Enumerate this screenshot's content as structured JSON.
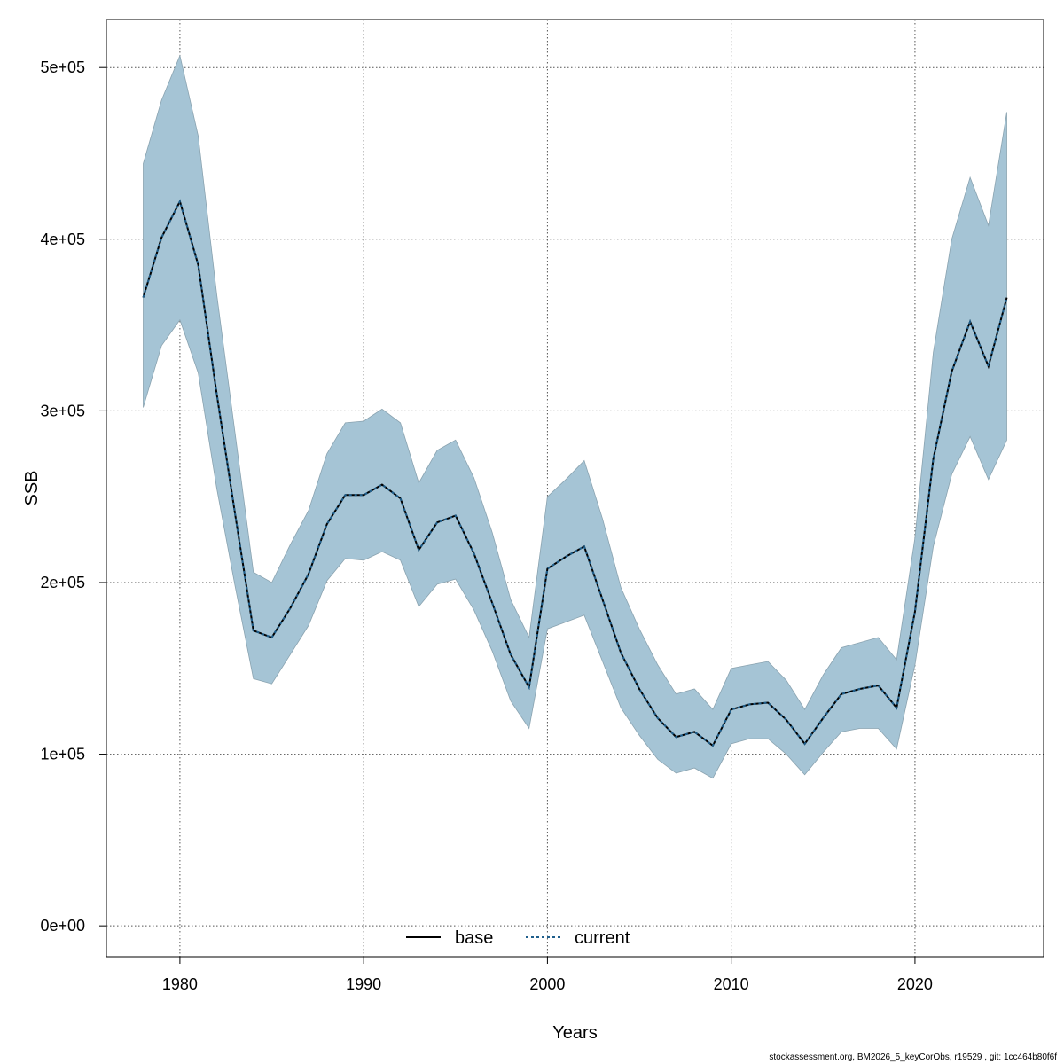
{
  "chart_data": {
    "type": "line",
    "xlabel": "Years",
    "ylabel": "SSB",
    "xlim": [
      1976,
      2027
    ],
    "ylim": [
      -18000,
      528000
    ],
    "x_ticks": [
      1980,
      1990,
      2000,
      2010,
      2020
    ],
    "x_tick_labels": [
      "1980",
      "1990",
      "2000",
      "2010",
      "2020"
    ],
    "y_ticks": [
      0,
      100000,
      200000,
      300000,
      400000,
      500000
    ],
    "y_tick_labels": [
      "0e+00",
      "1e+05",
      "2e+05",
      "3e+05",
      "4e+05",
      "5e+05"
    ],
    "grid": true,
    "legend_position": "bottom",
    "legend": [
      "base",
      "current"
    ],
    "colors": {
      "band": "#a5c4d5",
      "band_edge": "#8aa3b0",
      "base": "#000000",
      "current": "#1f5f8c",
      "grid": "#555555"
    },
    "years": [
      1978,
      1979,
      1980,
      1981,
      1982,
      1983,
      1984,
      1985,
      1986,
      1987,
      1988,
      1989,
      1990,
      1991,
      1992,
      1993,
      1994,
      1995,
      1996,
      1997,
      1998,
      1999,
      2000,
      2001,
      2002,
      2003,
      2004,
      2005,
      2006,
      2007,
      2008,
      2009,
      2010,
      2011,
      2012,
      2013,
      2014,
      2015,
      2016,
      2017,
      2018,
      2019,
      2020,
      2021,
      2022,
      2023,
      2024,
      2025
    ],
    "series": [
      {
        "name": "base",
        "line_style": "solid",
        "values": [
          366000,
          401000,
          422000,
          385000,
          310000,
          240000,
          172000,
          168000,
          185000,
          205000,
          234000,
          251000,
          251000,
          257000,
          249000,
          219000,
          235000,
          239000,
          217000,
          188000,
          158000,
          139000,
          208000,
          215000,
          221000,
          190000,
          159000,
          138000,
          121000,
          110000,
          113000,
          105000,
          126000,
          129000,
          130000,
          120000,
          106000,
          121000,
          135000,
          138000,
          140000,
          127000,
          183000,
          272000,
          323000,
          352000,
          326000,
          366000
        ]
      },
      {
        "name": "current",
        "line_style": "dashed",
        "values": [
          366000,
          401000,
          422000,
          385000,
          310000,
          240000,
          172000,
          168000,
          185000,
          205000,
          234000,
          251000,
          251000,
          257000,
          249000,
          219000,
          235000,
          239000,
          217000,
          188000,
          158000,
          139000,
          208000,
          215000,
          221000,
          190000,
          159000,
          138000,
          121000,
          110000,
          113000,
          105000,
          126000,
          129000,
          130000,
          120000,
          106000,
          121000,
          135000,
          138000,
          140000,
          127000,
          183000,
          272000,
          323000,
          352000,
          326000,
          366000
        ]
      }
    ],
    "ci_lower": [
      302000,
      338000,
      353000,
      322000,
      255000,
      198000,
      144000,
      141000,
      158000,
      175000,
      201000,
      214000,
      213000,
      218000,
      213000,
      186000,
      199000,
      202000,
      184000,
      160000,
      131000,
      115000,
      173000,
      177000,
      181000,
      154000,
      127000,
      111000,
      97000,
      89000,
      92000,
      86000,
      106000,
      109000,
      109000,
      100000,
      88000,
      101000,
      113000,
      115000,
      115000,
      103000,
      152000,
      221000,
      263000,
      285000,
      260000,
      283000
    ],
    "ci_upper": [
      444000,
      481000,
      507000,
      460000,
      368000,
      287000,
      206000,
      200000,
      222000,
      242000,
      275000,
      293000,
      294000,
      301000,
      293000,
      258000,
      277000,
      283000,
      261000,
      229000,
      190000,
      168000,
      250000,
      260000,
      271000,
      237000,
      197000,
      173000,
      152000,
      135000,
      138000,
      126000,
      150000,
      152000,
      154000,
      143000,
      126000,
      146000,
      162000,
      165000,
      168000,
      155000,
      226000,
      334000,
      400000,
      436000,
      408000,
      474000
    ]
  },
  "footer": "stockassessment.org, BM2026_5_keyCorObs, r19529 , git: 1cc464b80f6f"
}
